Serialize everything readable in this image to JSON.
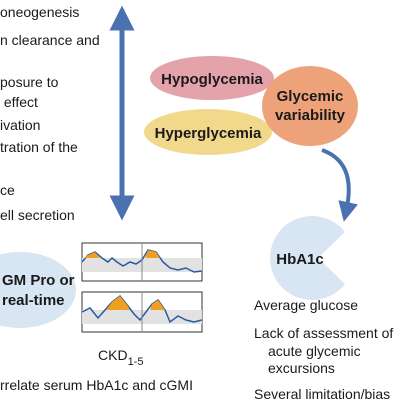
{
  "left_text": [
    "oneogenesis",
    "n clearance and",
    "posure to",
    " effect",
    "ivation",
    "tration of the",
    "ce",
    "ell secretion"
  ],
  "nodes": {
    "hypoglycemia": "Hypoglycemia",
    "hyperglycemia": "Hyperglycemia",
    "variability": [
      "Glycemic",
      "variability"
    ],
    "hba1c": "HbA1c",
    "cgm": [
      "GM Pro or",
      "real-time"
    ]
  },
  "hba1c_notes": [
    "Average glucose",
    "Lack of assessment of",
    "acute glycemic",
    "excursions",
    "Several limitation/bias"
  ],
  "ckd": {
    "label": "CKD",
    "subscript": "1-5"
  },
  "footer": "rrelate serum HbA1c and cGMI"
}
